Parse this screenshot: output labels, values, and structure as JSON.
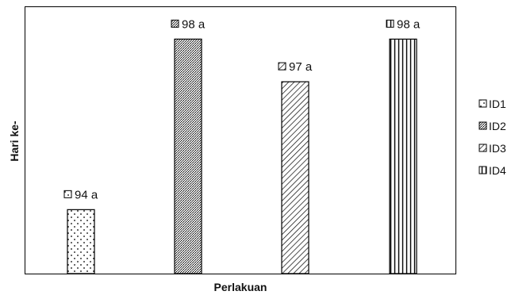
{
  "chart_data": {
    "type": "bar",
    "title": "",
    "xlabel": "Perlakuan",
    "ylabel": "Hari ke-",
    "categories": [
      "ID1",
      "ID2",
      "ID3",
      "ID4"
    ],
    "values": [
      94,
      98,
      97,
      98
    ],
    "data_labels": [
      "94 a",
      "98 a",
      "97 a",
      "98 a"
    ],
    "patterns": [
      "dots",
      "dense-crosshatch",
      "diagonal",
      "vertical-lines"
    ],
    "ylim": [
      92.5,
      98.75
    ],
    "y_ticks_shown": false,
    "grid": false,
    "legend": {
      "position": "right",
      "entries": [
        "ID1",
        "ID2",
        "ID3",
        "ID4"
      ]
    }
  }
}
